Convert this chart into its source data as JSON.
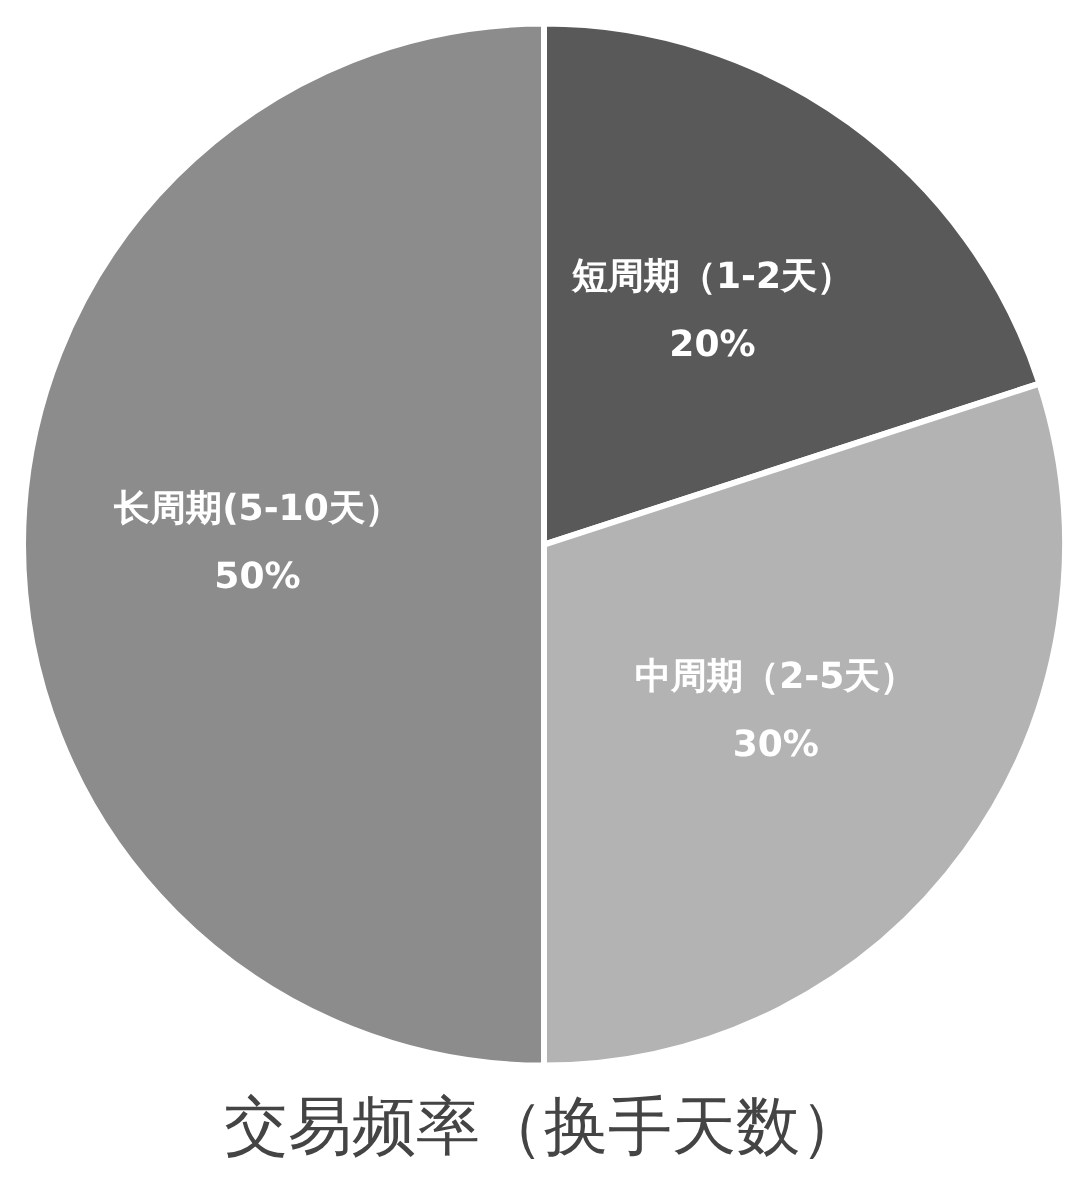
{
  "chart_data": {
    "type": "pie",
    "title": "交易频率（换手天数）",
    "categories": [
      "短周期（1-2天）",
      "中周期（2-5天）",
      "长周期(5-10天）"
    ],
    "values": [
      20,
      30,
      50
    ],
    "value_labels": [
      "20%",
      "30%",
      "50%"
    ],
    "colors": [
      "#595959",
      "#b3b3b3",
      "#8c8c8c"
    ],
    "legend": false
  }
}
